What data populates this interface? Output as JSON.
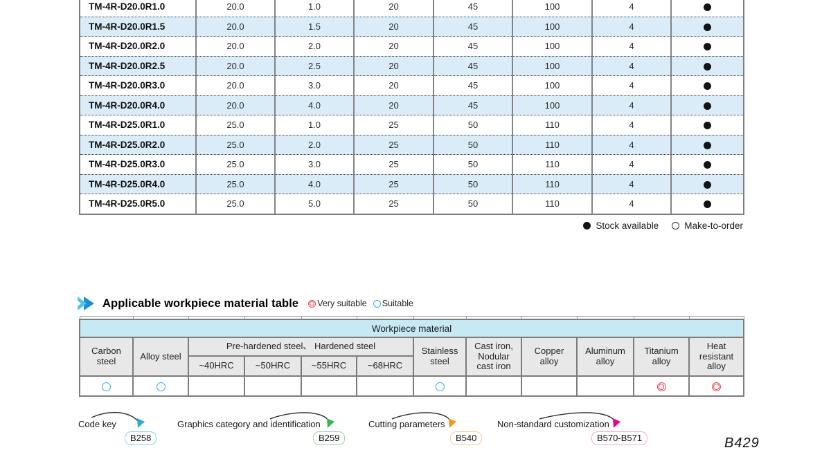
{
  "page_number": "B429",
  "colors": {
    "accent_blue": "#29abe2",
    "accent_red": "#e8414b",
    "row_stripe": "#d9ecf8",
    "band_cyan": "#c7e9f3"
  },
  "size_table": {
    "rows": [
      {
        "model": "TM-4R-D20.0R1.0",
        "dc": "20.0",
        "r": "1.0",
        "shank": "20",
        "ap": "45",
        "oal": "100",
        "flutes": "4",
        "stock": "available"
      },
      {
        "model": "TM-4R-D20.0R1.5",
        "dc": "20.0",
        "r": "1.5",
        "shank": "20",
        "ap": "45",
        "oal": "100",
        "flutes": "4",
        "stock": "available"
      },
      {
        "model": "TM-4R-D20.0R2.0",
        "dc": "20.0",
        "r": "2.0",
        "shank": "20",
        "ap": "45",
        "oal": "100",
        "flutes": "4",
        "stock": "available"
      },
      {
        "model": "TM-4R-D20.0R2.5",
        "dc": "20.0",
        "r": "2.5",
        "shank": "20",
        "ap": "45",
        "oal": "100",
        "flutes": "4",
        "stock": "available"
      },
      {
        "model": "TM-4R-D20.0R3.0",
        "dc": "20.0",
        "r": "3.0",
        "shank": "20",
        "ap": "45",
        "oal": "100",
        "flutes": "4",
        "stock": "available"
      },
      {
        "model": "TM-4R-D20.0R4.0",
        "dc": "20.0",
        "r": "4.0",
        "shank": "20",
        "ap": "45",
        "oal": "100",
        "flutes": "4",
        "stock": "available"
      },
      {
        "model": "TM-4R-D25.0R1.0",
        "dc": "25.0",
        "r": "1.0",
        "shank": "25",
        "ap": "50",
        "oal": "110",
        "flutes": "4",
        "stock": "available"
      },
      {
        "model": "TM-4R-D25.0R2.0",
        "dc": "25.0",
        "r": "2.0",
        "shank": "25",
        "ap": "50",
        "oal": "110",
        "flutes": "4",
        "stock": "available"
      },
      {
        "model": "TM-4R-D25.0R3.0",
        "dc": "25.0",
        "r": "3.0",
        "shank": "25",
        "ap": "50",
        "oal": "110",
        "flutes": "4",
        "stock": "available"
      },
      {
        "model": "TM-4R-D25.0R4.0",
        "dc": "25.0",
        "r": "4.0",
        "shank": "25",
        "ap": "50",
        "oal": "110",
        "flutes": "4",
        "stock": "available"
      },
      {
        "model": "TM-4R-D25.0R5.0",
        "dc": "25.0",
        "r": "5.0",
        "shank": "25",
        "ap": "50",
        "oal": "110",
        "flutes": "4",
        "stock": "available"
      }
    ],
    "stock_legend": {
      "available": "Stock available",
      "make_to_order": "Make-to-order"
    }
  },
  "material_section": {
    "title": "Applicable workpiece material table",
    "legend": {
      "very_suitable": "Very suitable",
      "suitable": "Suitable"
    },
    "table": {
      "band": "Workpiece material",
      "columns": {
        "carbon": "Carbon\nsteel",
        "alloy": "Alloy steel",
        "group": "Pre-hardened steel、 Hardened steel",
        "stainless": "Stainless\nsteel",
        "cast": "Cast iron,\nNodular\ncast iron",
        "copper": "Copper\nalloy",
        "aluminum": "Aluminum\nalloy",
        "titanium": "Titanium\nalloy",
        "heat": "Heat\nresistant\nalloy"
      },
      "hrc": [
        "~40HRC",
        "~50HRC",
        "~55HRC",
        "~68HRC"
      ],
      "ratings": [
        "suitable",
        "suitable",
        "",
        "",
        "",
        "",
        "suitable",
        "",
        "",
        "",
        "very",
        "very"
      ]
    }
  },
  "footer_links": [
    {
      "label": "Code key",
      "badge": "B258",
      "color": "#29abe2",
      "border": "#7fd3f0"
    },
    {
      "label": "Graphics category and identification",
      "badge": "B259",
      "color": "#39b54a",
      "border": "#90d8a8"
    },
    {
      "label": "Cutting parameters",
      "badge": "B540",
      "color": "#f7941d",
      "border": "#f8c98e"
    },
    {
      "label": "Non-standard customization",
      "badge": "B570-B571",
      "color": "#ec008c",
      "border": "#f5a8cb"
    }
  ]
}
